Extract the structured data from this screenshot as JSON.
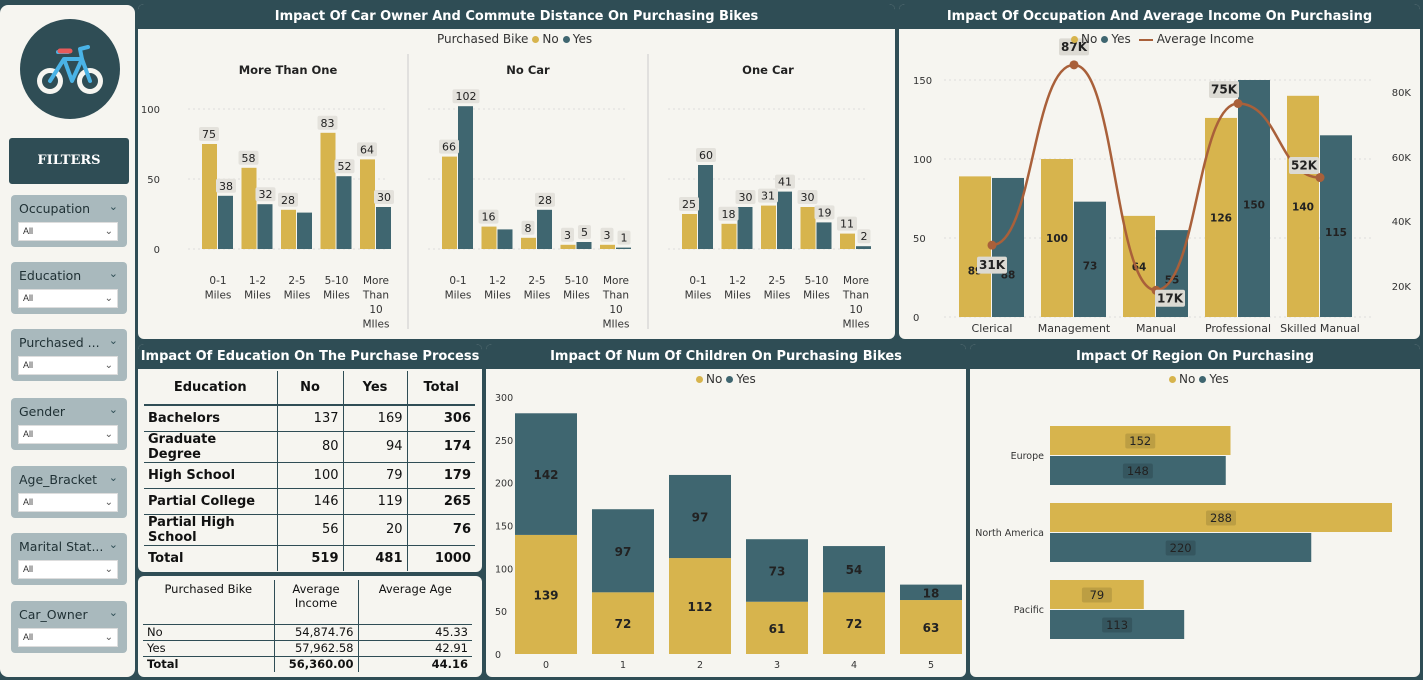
{
  "colors": {
    "no": "#d7b44d",
    "yes": "#3f6670",
    "line": "#a9603a",
    "panel": "#f6f5f0",
    "dark": "#2f4d55"
  },
  "sidebar": {
    "logo_icon": "bicycle-icon",
    "filters_label": "FILTERS",
    "slicers": [
      {
        "label": "Occupation",
        "value": "All"
      },
      {
        "label": "Education",
        "value": "All"
      },
      {
        "label": "Purchased ...",
        "value": "All"
      },
      {
        "label": "Gender",
        "value": "All"
      },
      {
        "label": "Age_Bracket",
        "value": "All"
      },
      {
        "label": "Marital Stat...",
        "value": "All"
      },
      {
        "label": "Car_Owner",
        "value": "All"
      }
    ]
  },
  "commute": {
    "title": "Impact Of Car Owner And Commute Distance On Purchasing Bikes",
    "legend_title": "Purchased Bike",
    "legend": [
      "No",
      "Yes"
    ]
  },
  "occupation": {
    "title": "Impact Of Occupation And Average Income On Purchasing",
    "legend": [
      "No",
      "Yes",
      "Average Income"
    ]
  },
  "education": {
    "title": "Impact Of Education On The Purchase Process",
    "headers": [
      "Education",
      "No",
      "Yes",
      "Total"
    ],
    "rows": [
      [
        "Bachelors",
        "137",
        "169",
        "306"
      ],
      [
        "Graduate Degree",
        "80",
        "94",
        "174"
      ],
      [
        "High School",
        "100",
        "79",
        "179"
      ],
      [
        "Partial College",
        "146",
        "119",
        "265"
      ],
      [
        "Partial High School",
        "56",
        "20",
        "76"
      ]
    ],
    "total": [
      "Total",
      "519",
      "481",
      "1000"
    ]
  },
  "avg_table": {
    "headers": [
      "Purchased Bike",
      "Average Income",
      "Average Age"
    ],
    "rows": [
      [
        "No",
        "54,874.76",
        "45.33"
      ],
      [
        "Yes",
        "57,962.58",
        "42.91"
      ]
    ],
    "total": [
      "Total",
      "56,360.00",
      "44.16"
    ]
  },
  "children": {
    "title": "Impact Of Num Of Children On Purchasing Bikes",
    "legend": [
      "No",
      "Yes"
    ]
  },
  "region": {
    "title": "Impact Of Region On Purchasing",
    "legend": [
      "No",
      "Yes"
    ]
  },
  "chart_data": [
    {
      "type": "bar",
      "title": "Impact Of Car Owner And Commute Distance On Purchasing Bikes",
      "legend_title": "Purchased Bike",
      "ylim": [
        0,
        120
      ],
      "yticks": [
        0,
        50,
        100
      ],
      "categories": [
        "0-1 Miles",
        "1-2 Miles",
        "2-5 Miles",
        "5-10 Miles",
        "More Than 10 MIles"
      ],
      "panels": [
        {
          "name": "More Than One",
          "no": [
            75,
            58,
            28,
            83,
            64
          ],
          "yes": [
            38,
            32,
            null,
            52,
            30
          ],
          "labels_no": [
            "75",
            "58",
            "28",
            "83",
            "64"
          ],
          "labels_yes": [
            "38",
            "32",
            "",
            "52",
            "30"
          ],
          "yes_values": [
            38,
            32,
            26,
            52,
            30
          ]
        },
        {
          "name": "No Car",
          "no": [
            66,
            16,
            8,
            3,
            3
          ],
          "yes": [
            102,
            null,
            28,
            5,
            1
          ],
          "labels_no": [
            "66",
            "16",
            "8",
            "3",
            "3"
          ],
          "labels_yes": [
            "102",
            "",
            "28",
            "5",
            "1"
          ],
          "yes_values": [
            102,
            14,
            28,
            5,
            1
          ]
        },
        {
          "name": "One Car",
          "no": [
            25,
            18,
            31,
            30,
            11
          ],
          "yes": [
            60,
            30,
            41,
            19,
            2
          ],
          "labels_no": [
            "25",
            "18",
            "31",
            "30",
            "11"
          ],
          "labels_yes": [
            "60",
            "30",
            "41",
            "19",
            "2"
          ],
          "yes_values": [
            60,
            30,
            41,
            19,
            2
          ]
        }
      ],
      "series": [
        {
          "name": "No"
        },
        {
          "name": "Yes"
        }
      ]
    },
    {
      "type": "bar",
      "title": "Impact Of Occupation And Average Income On Purchasing",
      "categories": [
        "Clerical",
        "Management",
        "Manual",
        "Professional",
        "Skilled Manual"
      ],
      "series": [
        {
          "name": "No",
          "values": [
            89,
            100,
            64,
            126,
            140
          ]
        },
        {
          "name": "Yes",
          "values": [
            88,
            73,
            55,
            150,
            115
          ]
        },
        {
          "name": "Average Income",
          "values": [
            31,
            87,
            17,
            75,
            52
          ],
          "labels": [
            "31K",
            "87K",
            "17K",
            "75K",
            "52K"
          ]
        }
      ],
      "ylim": [
        0,
        160
      ],
      "yticks": [
        0,
        50,
        100,
        150
      ],
      "y2ticks": [
        "20K",
        "40K",
        "60K",
        "80K"
      ]
    },
    {
      "type": "bar",
      "title": "Impact Of Num Of Children On Purchasing Bikes",
      "stacked": true,
      "categories": [
        "0",
        "1",
        "2",
        "3",
        "4",
        "5"
      ],
      "series": [
        {
          "name": "No",
          "values": [
            139,
            72,
            112,
            61,
            72,
            63
          ]
        },
        {
          "name": "Yes",
          "values": [
            142,
            97,
            97,
            73,
            54,
            18
          ]
        }
      ],
      "ylim": [
        0,
        300
      ],
      "yticks": [
        0,
        50,
        100,
        150,
        200,
        250,
        300
      ]
    },
    {
      "type": "bar",
      "title": "Impact Of Region On Purchasing",
      "orientation": "horizontal",
      "categories": [
        "Europe",
        "North America",
        "Pacific"
      ],
      "series": [
        {
          "name": "No",
          "values": [
            152,
            288,
            79
          ]
        },
        {
          "name": "Yes",
          "values": [
            148,
            220,
            113
          ]
        }
      ]
    }
  ]
}
